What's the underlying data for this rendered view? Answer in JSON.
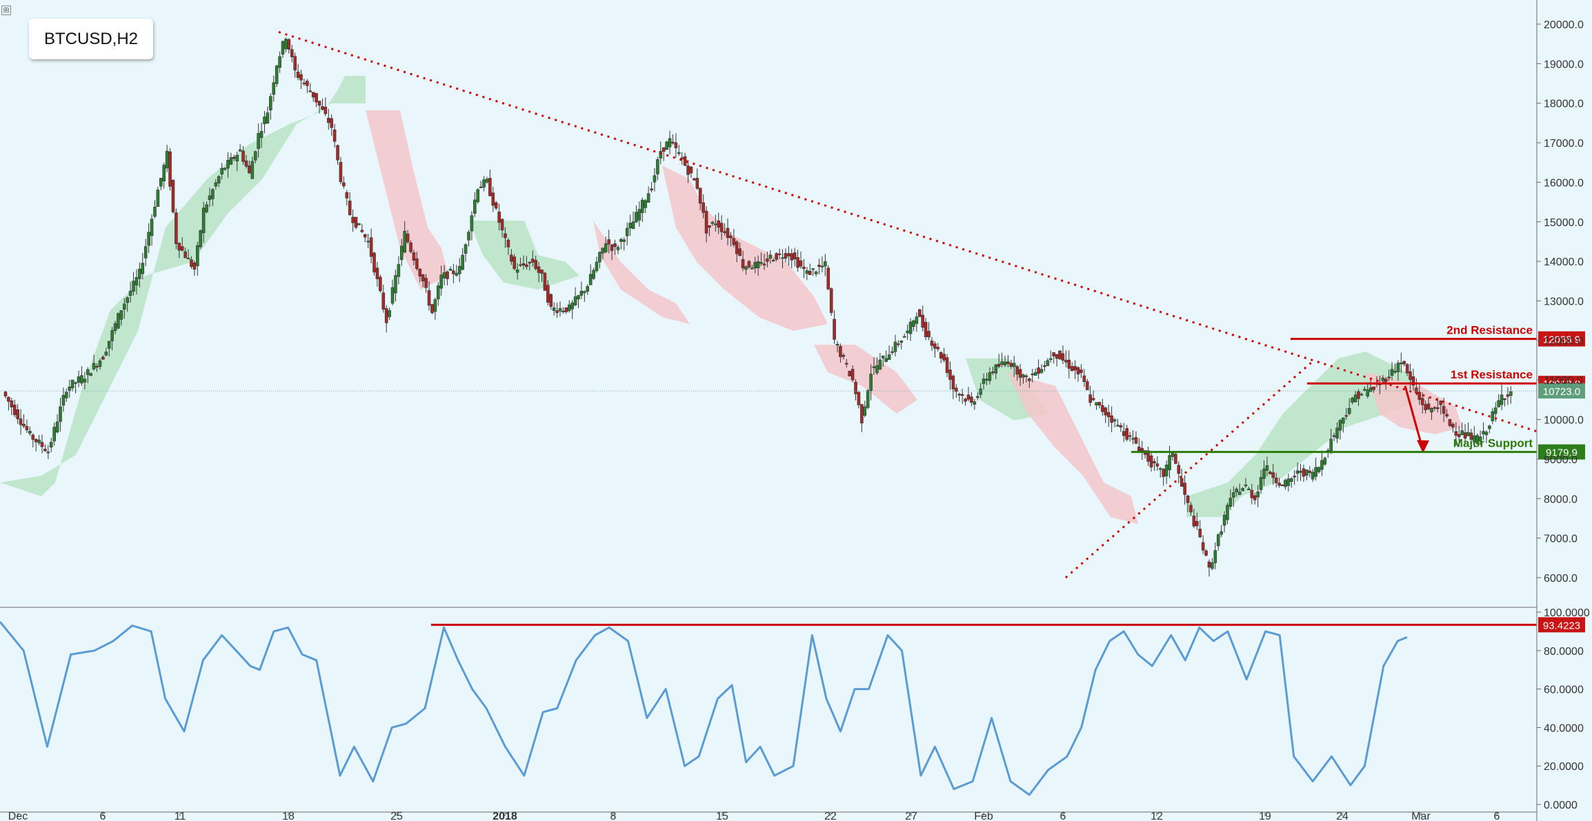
{
  "symbol": "BTCUSD,H2",
  "icons": {
    "corner": "crosshair-icon"
  },
  "colors": {
    "background": "#e9f7fc",
    "bull": "#2e7d32",
    "bear": "#a52a2a",
    "resistance": "#cc0000",
    "support": "#2b7a0b",
    "oscillator": "#5b9bd5",
    "cloud_bull": "#b8e4c6",
    "cloud_bear": "#f3c6c9"
  },
  "chart_data": [
    {
      "type": "candlestick",
      "title": "BTCUSD,H2",
      "x_tick_labels": [
        "Dec",
        "6",
        "11",
        "18",
        "25",
        "2018",
        "8",
        "15",
        "22",
        "27",
        "Feb",
        "6",
        "12",
        "19",
        "24",
        "Mar",
        "6"
      ],
      "y_tick_labels": [
        "20000.0",
        "19000.0",
        "18000.0",
        "17000.0",
        "16000.0",
        "15000.0",
        "14000.0",
        "13000.0",
        "12000.0",
        "11000.0",
        "10000.0",
        "9000.0",
        "8000.0",
        "7000.0",
        "6000.0"
      ],
      "ylim": [
        5200,
        20800
      ],
      "price_path": [
        [
          0,
          10700
        ],
        [
          3,
          9600
        ],
        [
          5,
          9200
        ],
        [
          7,
          10800
        ],
        [
          9,
          11100
        ],
        [
          11,
          11600
        ],
        [
          13,
          12800
        ],
        [
          15,
          13700
        ],
        [
          17,
          15800
        ],
        [
          18,
          16700
        ],
        [
          19,
          14500
        ],
        [
          21,
          13800
        ],
        [
          22,
          15300
        ],
        [
          24,
          16300
        ],
        [
          26,
          16800
        ],
        [
          27,
          16200
        ],
        [
          28,
          17200
        ],
        [
          29,
          17800
        ],
        [
          30,
          19000
        ],
        [
          31,
          19700
        ],
        [
          32,
          18800
        ],
        [
          33,
          18500
        ],
        [
          34,
          18200
        ],
        [
          36,
          17400
        ],
        [
          37,
          16100
        ],
        [
          38,
          15200
        ],
        [
          40,
          14500
        ],
        [
          41,
          13500
        ],
        [
          42,
          12500
        ],
        [
          44,
          14700
        ],
        [
          46,
          13500
        ],
        [
          47,
          12700
        ],
        [
          48,
          13600
        ],
        [
          50,
          13800
        ],
        [
          52,
          15900
        ],
        [
          53,
          16000
        ],
        [
          55,
          14500
        ],
        [
          56,
          13800
        ],
        [
          58,
          14000
        ],
        [
          59,
          13600
        ],
        [
          60,
          12800
        ],
        [
          62,
          12800
        ],
        [
          64,
          13400
        ],
        [
          66,
          14500
        ],
        [
          67,
          14300
        ],
        [
          69,
          15000
        ],
        [
          71,
          15900
        ],
        [
          72,
          16800
        ],
        [
          73,
          17050
        ],
        [
          74,
          16700
        ],
        [
          76,
          15900
        ],
        [
          77,
          14800
        ],
        [
          78,
          15000
        ],
        [
          80,
          14500
        ],
        [
          81,
          13900
        ],
        [
          83,
          13900
        ],
        [
          84,
          14100
        ],
        [
          86,
          14200
        ],
        [
          88,
          13700
        ],
        [
          90,
          13900
        ],
        [
          91,
          12000
        ],
        [
          93,
          11000
        ],
        [
          94,
          10000
        ],
        [
          95,
          11200
        ],
        [
          97,
          11700
        ],
        [
          99,
          12200
        ],
        [
          100,
          12700
        ],
        [
          101,
          12200
        ],
        [
          103,
          11500
        ],
        [
          104,
          10800
        ],
        [
          106,
          10400
        ],
        [
          108,
          11200
        ],
        [
          110,
          11500
        ],
        [
          112,
          11000
        ],
        [
          114,
          11400
        ],
        [
          115,
          11700
        ],
        [
          116,
          11500
        ],
        [
          118,
          11100
        ],
        [
          119,
          10500
        ],
        [
          120,
          10300
        ],
        [
          121,
          10100
        ],
        [
          123,
          9600
        ],
        [
          124,
          9400
        ],
        [
          125,
          9100
        ],
        [
          126,
          8800
        ],
        [
          127,
          8600
        ],
        [
          128,
          9200
        ],
        [
          129,
          8300
        ],
        [
          130,
          7600
        ],
        [
          131,
          7000
        ],
        [
          132,
          6200
        ],
        [
          133,
          7000
        ],
        [
          134,
          7800
        ],
        [
          135,
          8200
        ],
        [
          136,
          8300
        ],
        [
          137,
          8000
        ],
        [
          138,
          8800
        ],
        [
          139,
          8600
        ],
        [
          140,
          8300
        ],
        [
          141,
          8500
        ],
        [
          142,
          8700
        ],
        [
          143,
          8600
        ],
        [
          144,
          8800
        ],
        [
          145,
          9300
        ],
        [
          146,
          9800
        ],
        [
          147,
          10200
        ],
        [
          148,
          10600
        ],
        [
          149,
          10700
        ],
        [
          150,
          10800
        ],
        [
          151,
          11000
        ],
        [
          152,
          11200
        ],
        [
          153,
          11500
        ],
        [
          154,
          11000
        ],
        [
          155,
          10500
        ],
        [
          156,
          10200
        ],
        [
          157,
          10400
        ],
        [
          158,
          10000
        ],
        [
          159,
          9700
        ],
        [
          160,
          9600
        ],
        [
          161,
          9500
        ],
        [
          162,
          9600
        ],
        [
          163,
          10100
        ],
        [
          164,
          10600
        ],
        [
          165,
          10700
        ]
      ],
      "annotations": [
        {
          "label": "2nd Resistance",
          "value": 12038.9,
          "value_label": "12038.9"
        },
        {
          "label": "1st Resistance",
          "value": 10913.0,
          "value_label": "10913.0"
        },
        {
          "label": "",
          "value": 10723.0,
          "value_label": "10723.0"
        },
        {
          "label": "Major Support",
          "value": 9179.9,
          "value_label": "9179.9"
        }
      ],
      "trendlines": [
        {
          "from": [
            "Dec 17",
            19800
          ],
          "to": [
            "Mar 6",
            9700
          ],
          "style": "dotted"
        },
        {
          "from": [
            "Feb 6",
            6000
          ],
          "to": [
            "Feb 20",
            11500
          ],
          "style": "dotted"
        }
      ],
      "grid": false
    },
    {
      "type": "line",
      "title": "",
      "y_tick_labels": [
        "100.0000",
        "80.0000",
        "60.0000",
        "40.0000",
        "20.0000",
        "0.0000"
      ],
      "ylim": [
        0,
        100
      ],
      "overbought_value_label": "93.4223",
      "overbought_value": 93.4223,
      "series": [
        {
          "values": [
            [
              0,
              95
            ],
            [
              5,
              80
            ],
            [
              10,
              30
            ],
            [
              15,
              78
            ],
            [
              20,
              80
            ],
            [
              24,
              85
            ],
            [
              28,
              93
            ],
            [
              32,
              90
            ],
            [
              35,
              55
            ],
            [
              39,
              38
            ],
            [
              43,
              75
            ],
            [
              47,
              88
            ],
            [
              50,
              80
            ],
            [
              53,
              72
            ],
            [
              55,
              70
            ],
            [
              58,
              90
            ],
            [
              61,
              92
            ],
            [
              64,
              78
            ],
            [
              67,
              75
            ],
            [
              72,
              15
            ],
            [
              75,
              30
            ],
            [
              79,
              12
            ],
            [
              83,
              40
            ],
            [
              86,
              42
            ],
            [
              90,
              50
            ],
            [
              94,
              92
            ],
            [
              97,
              75
            ],
            [
              100,
              60
            ],
            [
              103,
              50
            ],
            [
              107,
              30
            ],
            [
              111,
              15
            ],
            [
              115,
              48
            ],
            [
              118,
              50
            ],
            [
              122,
              75
            ],
            [
              126,
              88
            ],
            [
              129,
              92
            ],
            [
              133,
              85
            ],
            [
              137,
              45
            ],
            [
              141,
              60
            ],
            [
              145,
              20
            ],
            [
              148,
              25
            ],
            [
              152,
              55
            ],
            [
              155,
              62
            ],
            [
              158,
              22
            ],
            [
              161,
              30
            ],
            [
              164,
              15
            ],
            [
              168,
              20
            ],
            [
              172,
              88
            ],
            [
              175,
              55
            ],
            [
              178,
              38
            ],
            [
              181,
              60
            ],
            [
              184,
              60
            ],
            [
              188,
              88
            ],
            [
              191,
              80
            ],
            [
              195,
              15
            ],
            [
              198,
              30
            ],
            [
              202,
              8
            ],
            [
              206,
              12
            ],
            [
              210,
              45
            ],
            [
              214,
              12
            ],
            [
              218,
              5
            ],
            [
              222,
              18
            ],
            [
              226,
              25
            ],
            [
              229,
              40
            ],
            [
              232,
              70
            ],
            [
              235,
              85
            ],
            [
              238,
              90
            ],
            [
              241,
              78
            ],
            [
              244,
              72
            ],
            [
              248,
              88
            ],
            [
              251,
              75
            ],
            [
              254,
              92
            ],
            [
              257,
              85
            ],
            [
              260,
              90
            ],
            [
              264,
              65
            ],
            [
              268,
              90
            ],
            [
              271,
              88
            ],
            [
              274,
              25
            ],
            [
              278,
              12
            ],
            [
              282,
              25
            ],
            [
              286,
              10
            ],
            [
              289,
              20
            ],
            [
              293,
              72
            ],
            [
              296,
              85
            ],
            [
              298,
              87
            ]
          ]
        }
      ]
    }
  ]
}
